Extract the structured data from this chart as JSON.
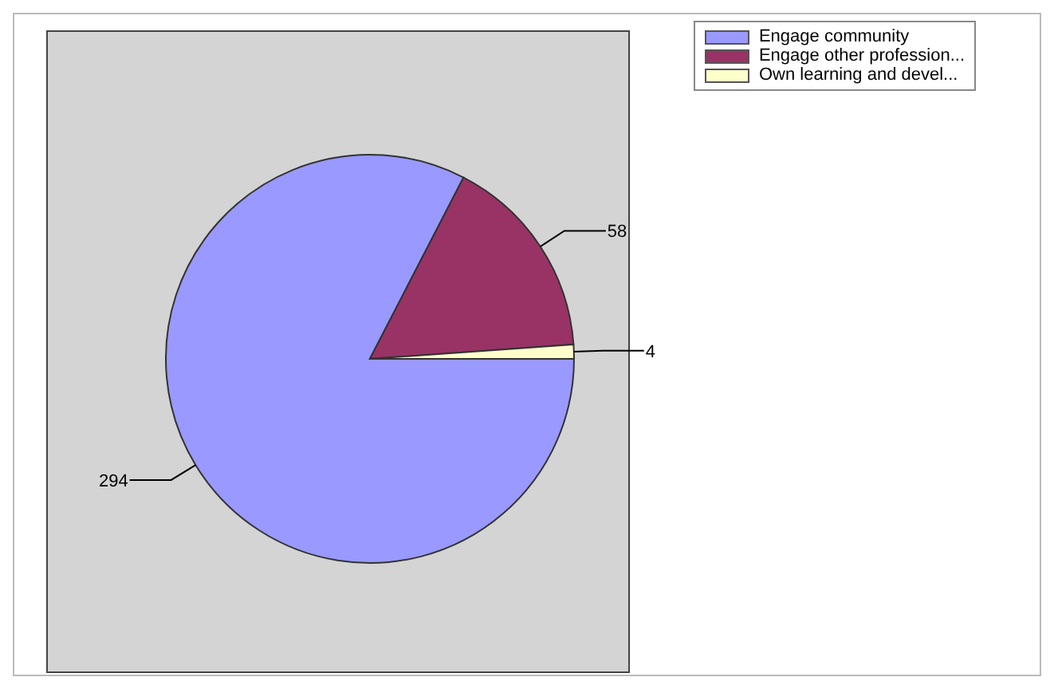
{
  "chart_data": {
    "type": "pie",
    "categories": [
      "Engage community",
      "Engage other profession...",
      "Own learning and devel..."
    ],
    "values": [
      294,
      58,
      4
    ],
    "colors": [
      "#9999ff",
      "#993366",
      "#ffffcc"
    ],
    "data_labels": true,
    "legend": "top right"
  }
}
